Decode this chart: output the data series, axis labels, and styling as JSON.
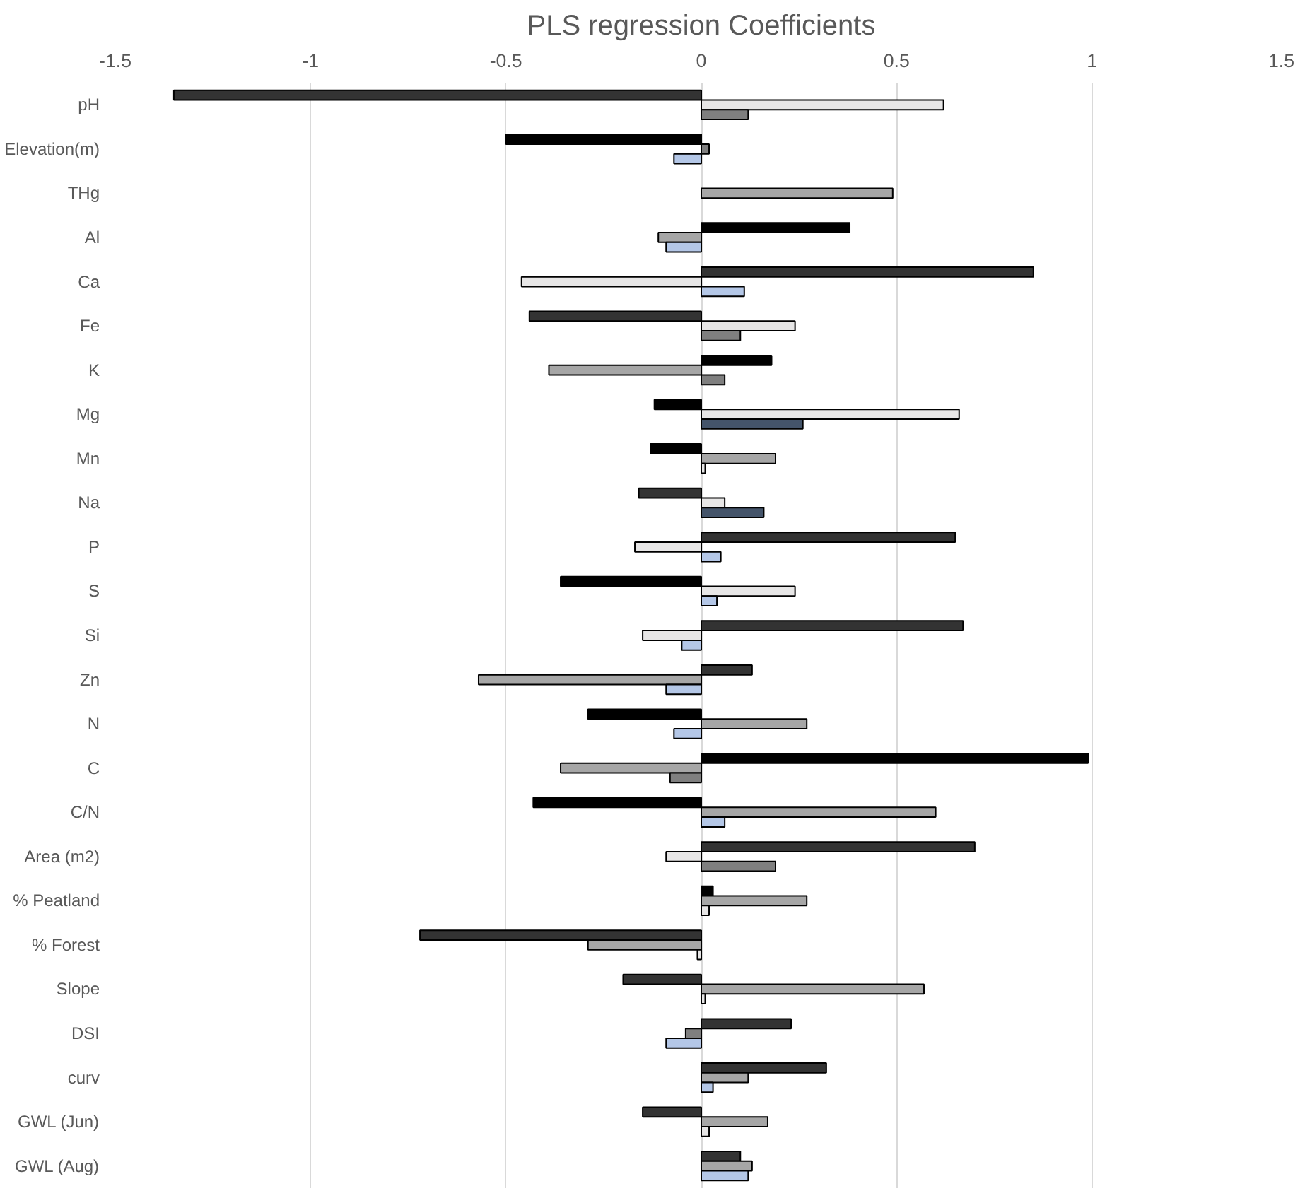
{
  "chart_data": {
    "type": "bar",
    "orientation": "horizontal",
    "title": "PLS regression Coefficients",
    "categories": [
      "pH",
      "Elevation(m)",
      "THg",
      "Al",
      "Ca",
      "Fe",
      "K",
      "Mg",
      "Mn",
      "Na",
      "P",
      "S",
      "Si",
      "Zn",
      "N",
      "C",
      "C/N",
      "Area (m2)",
      "% Peatland",
      "% Forest",
      "Slope",
      "DSI",
      "curv",
      "GWL (Jun)",
      "GWL (Aug)"
    ],
    "series": [
      {
        "values": [
          -1.35,
          -0.5,
          null,
          0.38,
          0.85,
          -0.44,
          0.18,
          -0.12,
          -0.13,
          -0.16,
          0.65,
          -0.36,
          0.67,
          0.13,
          -0.29,
          0.99,
          -0.43,
          0.7,
          0.03,
          -0.72,
          -0.2,
          0.23,
          0.32,
          -0.15,
          0.1
        ],
        "colors": [
          "#333333",
          "#000000",
          "#000000",
          "#000000",
          "#333333",
          "#333333",
          "#000000",
          "#000000",
          "#000000",
          "#333333",
          "#333333",
          "#000000",
          "#333333",
          "#333333",
          "#000000",
          "#000000",
          "#000000",
          "#333333",
          "#000000",
          "#333333",
          "#333333",
          "#333333",
          "#333333",
          "#333333",
          "#333333"
        ]
      },
      {
        "values": [
          0.62,
          0.02,
          0.49,
          -0.11,
          -0.46,
          0.24,
          -0.39,
          0.66,
          0.19,
          0.06,
          -0.17,
          0.24,
          -0.15,
          -0.57,
          0.27,
          -0.36,
          0.6,
          -0.09,
          0.27,
          -0.29,
          0.57,
          -0.04,
          0.12,
          0.17,
          0.13
        ],
        "colors": [
          "#e7e6e6",
          "#7f7f7f",
          "#a6a6a6",
          "#a6a6a6",
          "#e7e6e6",
          "#e7e6e6",
          "#a6a6a6",
          "#e7e6e6",
          "#a6a6a6",
          "#e7e6e6",
          "#e7e6e6",
          "#e7e6e6",
          "#e7e6e6",
          "#a6a6a6",
          "#a6a6a6",
          "#a6a6a6",
          "#a6a6a6",
          "#e7e6e6",
          "#a6a6a6",
          "#a6a6a6",
          "#a6a6a6",
          "#7f7f7f",
          "#a6a6a6",
          "#a6a6a6",
          "#a6a6a6"
        ]
      },
      {
        "values": [
          0.12,
          -0.07,
          null,
          -0.09,
          0.11,
          0.1,
          0.06,
          0.26,
          0.01,
          0.16,
          0.05,
          0.04,
          -0.05,
          -0.09,
          -0.07,
          -0.08,
          0.06,
          0.19,
          0.02,
          -0.01,
          0.01,
          -0.09,
          0.03,
          0.02,
          0.12
        ],
        "colors": [
          "#7f7f7f",
          "#b4c7e7",
          "#b4c7e7",
          "#b4c7e7",
          "#b4c7e7",
          "#7f7f7f",
          "#7f7f7f",
          "#44546a",
          "#e7e6e6",
          "#44546a",
          "#b4c7e7",
          "#b4c7e7",
          "#b4c7e7",
          "#b4c7e7",
          "#b4c7e7",
          "#7f7f7f",
          "#b4c7e7",
          "#7f7f7f",
          "#e7e6e6",
          "#e7e6e6",
          "#e7e6e6",
          "#b4c7e7",
          "#b4c7e7",
          "#e7e6e6",
          "#b4c7e7"
        ]
      }
    ],
    "xlim": [
      -1.5,
      1.5
    ],
    "xticks": [
      -1.5,
      -1,
      -0.5,
      0,
      0.5,
      1,
      1.5
    ],
    "grid": "x"
  }
}
